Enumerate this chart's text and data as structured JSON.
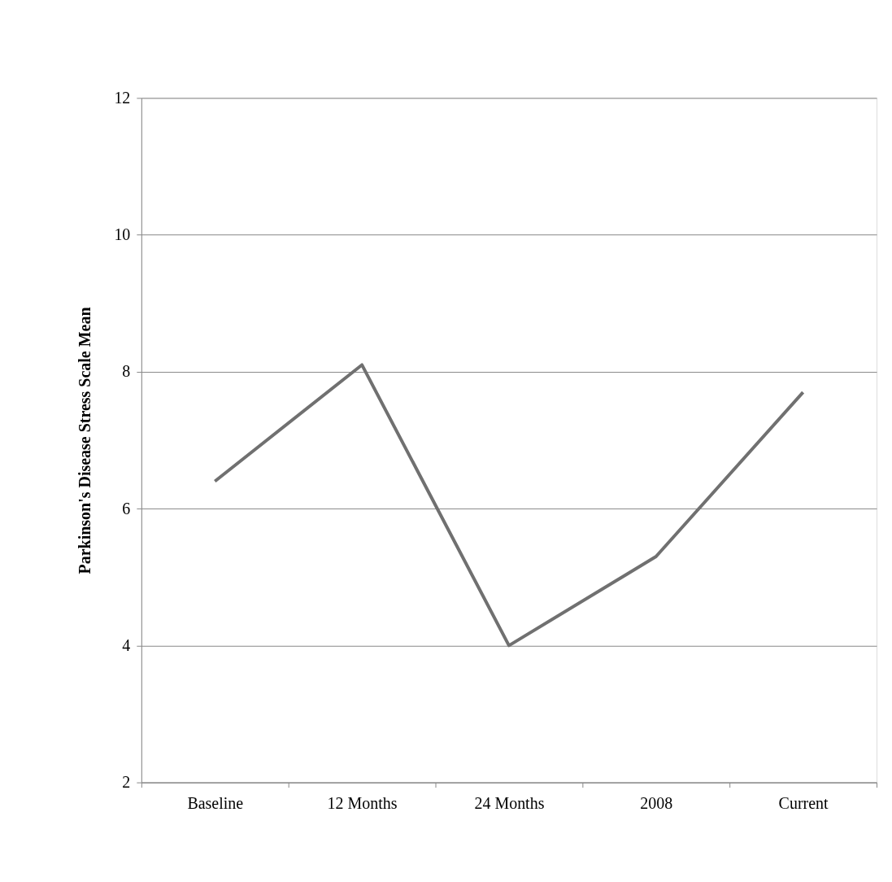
{
  "chart_data": {
    "type": "line",
    "ylabel": "Parkinson's Disease Stress Scale Mean",
    "categories": [
      "Baseline",
      "12 Months",
      "24 Months",
      "2008",
      "Current"
    ],
    "series": [
      {
        "color": "#707070",
        "values": [
          6.4,
          8.1,
          4.0,
          5.3,
          7.7
        ]
      }
    ],
    "ylim": [
      2,
      12
    ],
    "yticks": [
      2,
      4,
      6,
      8,
      10,
      12
    ],
    "grid": "y",
    "marker": "none",
    "line_style": "solid"
  }
}
